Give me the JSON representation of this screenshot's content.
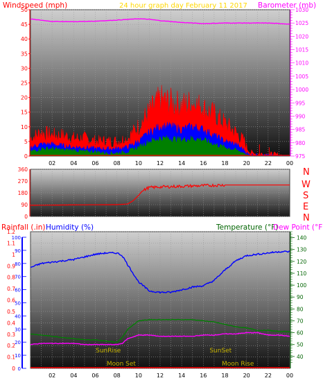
{
  "header": {
    "left": "Windspeed (mph)",
    "center": "24 hour graph day   February 11 2017",
    "right": "Barometer (mb)"
  },
  "colors": {
    "red": "#ff0000",
    "magenta": "#ff00ff",
    "blue": "#0000ff",
    "green": "#008000",
    "darkgreen": "#006400",
    "yellow": "#ffd700",
    "gold": "#c8b400",
    "axis": "#202020"
  },
  "chart_data": [
    {
      "id": "wind",
      "type": "line",
      "ylabel": "Windspeed (mph)",
      "y2label": "Barometer (mb)",
      "ylim": [
        0,
        50
      ],
      "y2lim": [
        975,
        1030
      ],
      "yticks": [
        0,
        5,
        10,
        15,
        20,
        25,
        30,
        35,
        40,
        45,
        50
      ],
      "y2ticks": [
        975,
        980,
        985,
        990,
        995,
        1000,
        1005,
        1010,
        1015,
        1020,
        1025,
        1030
      ],
      "xtick_labels": [
        "02",
        "04",
        "06",
        "08",
        "10",
        "12",
        "14",
        "16",
        "18",
        "20",
        "22",
        "00"
      ],
      "series": [
        {
          "name": "Windspeed",
          "color": "#ff0000",
          "x": [
            0,
            1,
            2,
            3,
            4,
            5,
            6,
            7,
            8,
            9,
            10,
            11,
            12,
            13,
            14,
            15,
            16,
            17,
            18,
            19,
            19.8,
            20.2,
            21,
            22,
            23,
            24
          ],
          "y": [
            4,
            6,
            6,
            5,
            5,
            4,
            4,
            3.5,
            3.5,
            4,
            7,
            12,
            16,
            15,
            13,
            15,
            14,
            10,
            8,
            6,
            3,
            1,
            0,
            0,
            0,
            0
          ]
        },
        {
          "name": "Gust",
          "color": "#ff0000",
          "x": [
            0,
            1,
            2,
            3,
            4,
            5,
            6,
            7,
            8,
            9,
            10,
            11,
            12,
            13,
            14,
            15,
            16,
            17,
            18,
            19,
            19.8,
            20.2,
            24
          ],
          "y": [
            6,
            8,
            7,
            7,
            6,
            6,
            5,
            5,
            5,
            6,
            10,
            15,
            19,
            18,
            17,
            18,
            16,
            14,
            11,
            8,
            5,
            1,
            0
          ]
        },
        {
          "name": "Average",
          "color": "#0000ff",
          "x": [
            0,
            1,
            2,
            3,
            4,
            5,
            6,
            7,
            8,
            9,
            10,
            11,
            12,
            13,
            14,
            15,
            16,
            17,
            18,
            19,
            19.8,
            20.2,
            24
          ],
          "y": [
            3,
            4,
            4,
            3.5,
            3,
            3,
            2.5,
            2.5,
            2.5,
            3,
            5,
            8,
            10,
            10,
            9,
            10,
            9,
            7,
            5,
            4,
            2,
            0.5,
            0
          ]
        },
        {
          "name": "Lull",
          "color": "#008000",
          "x": [
            0,
            1,
            2,
            3,
            4,
            5,
            6,
            7,
            8,
            9,
            10,
            11,
            12,
            13,
            14,
            15,
            16,
            17,
            18,
            19,
            19.8,
            20.2,
            24
          ],
          "y": [
            1.5,
            2.5,
            2.5,
            2,
            2,
            1.5,
            1.5,
            1,
            1,
            1.5,
            3,
            5,
            6,
            6,
            5.5,
            6,
            5.5,
            4,
            3,
            2,
            1,
            0,
            0
          ]
        },
        {
          "name": "Barometer",
          "color": "#ff00ff",
          "axis": "right",
          "x": [
            0,
            2,
            4,
            6,
            8,
            10,
            11,
            12,
            14,
            16,
            18,
            20,
            22,
            24
          ],
          "y": [
            1026.5,
            1025.6,
            1025.5,
            1025.7,
            1026.1,
            1026.6,
            1026.4,
            1025.9,
            1025.2,
            1024.8,
            1025.0,
            1025.0,
            1025.0,
            1024.6
          ]
        }
      ]
    },
    {
      "id": "direction",
      "type": "line",
      "ylim": [
        0,
        360
      ],
      "yticks": [
        0,
        90,
        180,
        270,
        360
      ],
      "y2_labels": [
        "N",
        "W",
        "S",
        "E",
        "N"
      ],
      "series": [
        {
          "name": "Wind direction",
          "color": "#ff0000",
          "x": [
            0,
            4,
            8,
            9,
            9.5,
            10,
            10.3,
            10.8,
            11,
            12,
            14,
            16,
            18,
            24
          ],
          "y": [
            85,
            88,
            90,
            95,
            120,
            160,
            190,
            215,
            220,
            225,
            230,
            235,
            240,
            240
          ]
        }
      ]
    },
    {
      "id": "temp",
      "type": "line",
      "ylabel": "Rainfall (.in)",
      "ylabel2": "Humidity (%)",
      "y2label": "Temperature (°F)",
      "y3label": "Dew Point (°F)",
      "ylim": [
        0,
        1.2
      ],
      "yticks": [
        0,
        0.1,
        0.2,
        0.3,
        0.4,
        0.5,
        0.6,
        0.7,
        0.8,
        0.9,
        1,
        1.1,
        1.2
      ],
      "ytick_labels": [
        "0",
        "0.1",
        "0.2",
        "0.3",
        "0.4",
        "0.5",
        "0.6",
        "0.7",
        "0.8",
        "0.9",
        "1",
        "1.1",
        "1.2"
      ],
      "humidity_ticks": [
        0,
        10,
        20,
        30,
        40,
        50,
        60,
        70,
        80,
        90,
        100
      ],
      "y2lim": [
        30,
        145
      ],
      "y2ticks": [
        40,
        50,
        60,
        70,
        80,
        90,
        100,
        110,
        120,
        130,
        140
      ],
      "xtick_labels": [
        "02",
        "04",
        "06",
        "08",
        "10",
        "12",
        "14",
        "16",
        "18",
        "20",
        "22",
        "00"
      ],
      "annotations": [
        {
          "text": "SunRise",
          "x": 7.2,
          "row": "upper"
        },
        {
          "text": "SunSet",
          "x": 17.6,
          "row": "upper"
        },
        {
          "text": "Moon Set",
          "x": 8.4,
          "row": "lower"
        },
        {
          "text": "Moon Rise",
          "x": 19.2,
          "row": "lower"
        }
      ],
      "series": [
        {
          "name": "Humidity",
          "color": "#0000ff",
          "axis": "humidity",
          "x": [
            0,
            1,
            2,
            3,
            4,
            5,
            6,
            7,
            8,
            8.5,
            9,
            10,
            11,
            12,
            13,
            14,
            15,
            16,
            17,
            18,
            19,
            20,
            21,
            22,
            23,
            24
          ],
          "y": [
            77,
            80,
            81,
            82,
            83,
            85,
            87,
            88,
            88,
            86,
            79,
            66,
            59,
            58,
            58,
            60,
            62,
            63,
            67,
            75,
            82,
            86,
            87,
            88,
            89,
            89
          ]
        },
        {
          "name": "Temperature",
          "color": "#008000",
          "axis": "right",
          "x": [
            0,
            1,
            2,
            3,
            4,
            5,
            6,
            7,
            8,
            8.5,
            9,
            10,
            11,
            12,
            13,
            14,
            15,
            16,
            17,
            18,
            19,
            20,
            21,
            22,
            23,
            24
          ],
          "y": [
            59,
            58,
            57,
            56,
            55,
            54,
            54,
            53,
            52,
            56,
            63,
            70,
            71,
            71,
            71,
            71,
            71,
            70,
            69,
            67,
            65,
            64,
            62,
            62,
            61,
            61
          ]
        },
        {
          "name": "Dew Point",
          "color": "#ff00ff",
          "axis": "right",
          "x": [
            0,
            1,
            2,
            3,
            4,
            5,
            6,
            7,
            8,
            8.5,
            9,
            10,
            11,
            12,
            13,
            14,
            15,
            16,
            17,
            18,
            19,
            20,
            21,
            22,
            23,
            24
          ],
          "y": [
            50,
            51,
            51,
            51,
            51,
            50,
            50,
            50,
            50,
            51,
            55,
            58,
            58,
            57,
            57,
            57,
            57,
            58,
            58,
            59,
            59,
            60,
            60,
            58,
            58,
            57
          ]
        },
        {
          "name": "Rainfall",
          "color": "#ff0000",
          "axis": "left",
          "x": [
            0,
            24
          ],
          "y": [
            0,
            0
          ]
        }
      ]
    }
  ],
  "direction_labels": {
    "n_top": "N",
    "w": "W",
    "s": "S",
    "e": "E",
    "n_bottom": "N"
  },
  "temp_headers": {
    "rain": "Rainfall (.in)",
    "humidity": "Humidity (%)",
    "temp": "Temperature (°F)",
    "dew": "Dew Point (°F)"
  }
}
